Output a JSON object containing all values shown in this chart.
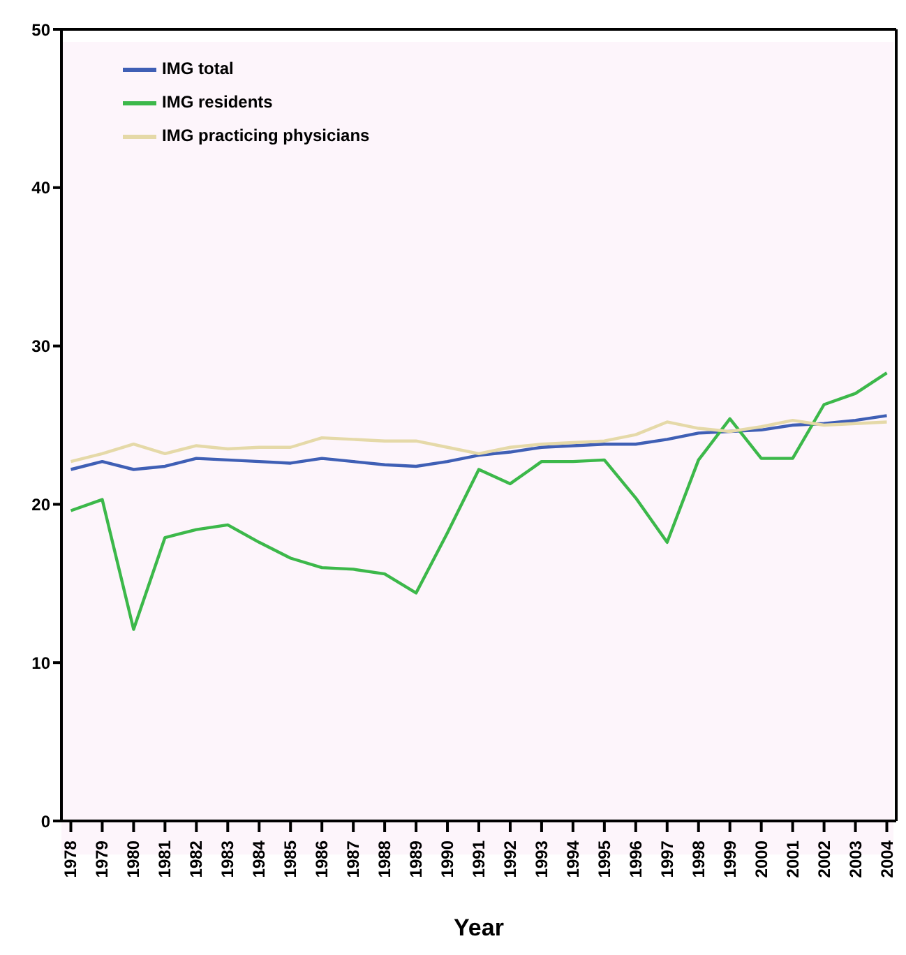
{
  "chart_data": {
    "type": "line",
    "xlabel": "Year",
    "categories": [
      "1978",
      "1979",
      "1980",
      "1981",
      "1982",
      "1983",
      "1984",
      "1985",
      "1986",
      "1987",
      "1988",
      "1989",
      "1990",
      "1991",
      "1992",
      "1993",
      "1994",
      "1995",
      "1996",
      "1997",
      "1998",
      "1999",
      "2000",
      "2001",
      "2002",
      "2003",
      "2004"
    ],
    "series": [
      {
        "name": "IMG total",
        "color": "#3f5fb5",
        "values": [
          22.2,
          22.7,
          22.2,
          22.4,
          22.9,
          22.8,
          22.7,
          22.6,
          22.9,
          22.7,
          22.5,
          22.4,
          22.7,
          23.1,
          23.3,
          23.6,
          23.7,
          23.8,
          23.8,
          24.1,
          24.5,
          24.6,
          24.7,
          25.0,
          25.1,
          25.3,
          25.6
        ]
      },
      {
        "name": "IMG residents",
        "color": "#3cb84a",
        "values": [
          19.6,
          20.3,
          12.1,
          17.9,
          18.4,
          18.7,
          17.6,
          16.6,
          16.0,
          15.9,
          15.6,
          14.4,
          18.2,
          22.2,
          21.3,
          22.7,
          22.7,
          22.8,
          20.4,
          17.6,
          22.8,
          25.4,
          22.9,
          22.9,
          26.3,
          27.0,
          28.3
        ]
      },
      {
        "name": "IMG practicing physicians",
        "color": "#e5d9a8",
        "values": [
          22.7,
          23.2,
          23.8,
          23.2,
          23.7,
          23.5,
          23.6,
          23.6,
          24.2,
          24.1,
          24.0,
          24.0,
          23.6,
          23.2,
          23.6,
          23.8,
          23.9,
          24.0,
          24.4,
          25.2,
          24.8,
          24.6,
          24.9,
          25.3,
          25.0,
          25.1,
          25.2
        ]
      }
    ],
    "ylim": [
      0,
      50
    ],
    "yticks": [
      0,
      10,
      20,
      30,
      40,
      50
    ],
    "grid": false,
    "legend": "top left",
    "marker": "none",
    "line_style": "solid"
  }
}
